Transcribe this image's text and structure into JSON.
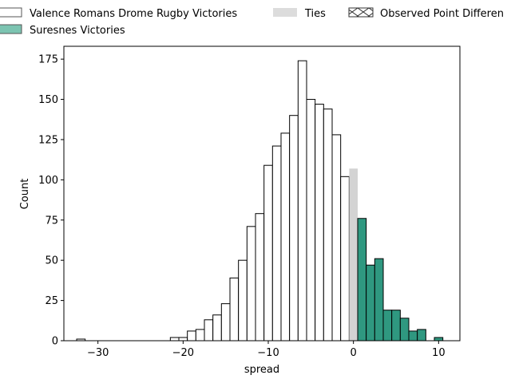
{
  "chart_data": {
    "type": "bar",
    "subtype": "histogram",
    "title": "",
    "xlabel": "spread",
    "ylabel": "Count",
    "xlim": [
      -34,
      12.5
    ],
    "ylim": [
      0,
      183
    ],
    "x_ticks": [
      -30,
      -20,
      -10,
      0,
      10
    ],
    "y_ticks": [
      0,
      25,
      50,
      75,
      100,
      125,
      150,
      175
    ],
    "bin_width": 1,
    "grid": false,
    "legend_placement": "top, above plot",
    "legend": [
      {
        "label": "Valence Romans Drome Rugby Victories",
        "style": "white"
      },
      {
        "label": "Ties",
        "style": "gray"
      },
      {
        "label": "Observed Point Differen",
        "style": "hatch"
      },
      {
        "label": "Suresnes Victories",
        "style": "teal"
      }
    ],
    "colors": {
      "valence": "#ffffff",
      "ties": "#d3d3d3",
      "suresnes": "#2f9880",
      "suresnes_legend": "#7cc4b1",
      "edge": "#000000"
    },
    "series": [
      {
        "name": "Valence Romans Drome Rugby Victories",
        "color": "white",
        "bins": [
          {
            "x": -32,
            "count": 1
          },
          {
            "x": -21,
            "count": 2
          },
          {
            "x": -20,
            "count": 2
          },
          {
            "x": -19,
            "count": 6
          },
          {
            "x": -18,
            "count": 7
          },
          {
            "x": -17,
            "count": 13
          },
          {
            "x": -16,
            "count": 16
          },
          {
            "x": -15,
            "count": 23
          },
          {
            "x": -14,
            "count": 39
          },
          {
            "x": -13,
            "count": 50
          },
          {
            "x": -12,
            "count": 71
          },
          {
            "x": -11,
            "count": 79
          },
          {
            "x": -10,
            "count": 109
          },
          {
            "x": -9,
            "count": 121
          },
          {
            "x": -8,
            "count": 129
          },
          {
            "x": -7,
            "count": 140
          },
          {
            "x": -6,
            "count": 174
          },
          {
            "x": -5,
            "count": 150
          },
          {
            "x": -4,
            "count": 147
          },
          {
            "x": -3,
            "count": 144
          },
          {
            "x": -2,
            "count": 128
          },
          {
            "x": -1,
            "count": 102
          }
        ]
      },
      {
        "name": "Ties",
        "color": "gray",
        "bins": [
          {
            "x": 0,
            "count": 107
          }
        ]
      },
      {
        "name": "Suresnes Victories",
        "color": "teal",
        "bins": [
          {
            "x": 1,
            "count": 76
          },
          {
            "x": 2,
            "count": 47
          },
          {
            "x": 3,
            "count": 51
          },
          {
            "x": 4,
            "count": 19
          },
          {
            "x": 5,
            "count": 19
          },
          {
            "x": 6,
            "count": 14
          },
          {
            "x": 7,
            "count": 6
          },
          {
            "x": 8,
            "count": 7
          },
          {
            "x": 10,
            "count": 2
          }
        ]
      }
    ]
  }
}
